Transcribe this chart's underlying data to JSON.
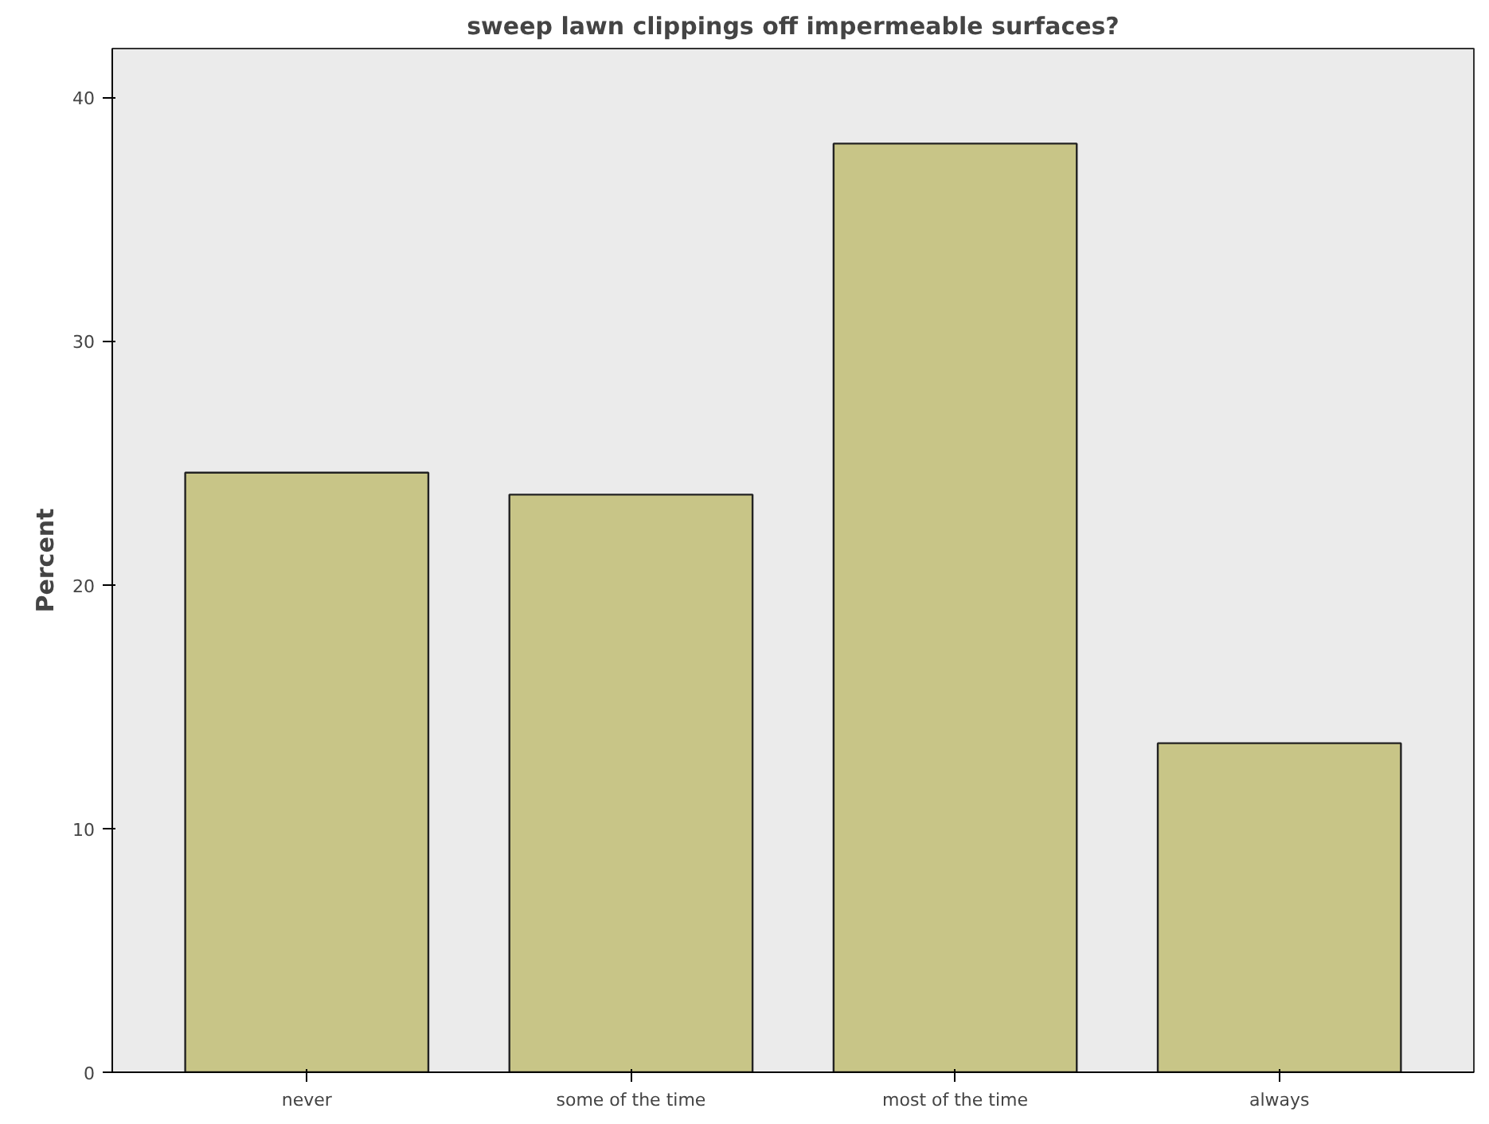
{
  "chart_data": {
    "type": "bar",
    "title": "sweep lawn clippings off impermeable surfaces?",
    "ylabel": "Percent",
    "categories": [
      "never",
      "some of the time",
      "most of the time",
      "always"
    ],
    "values": [
      24.6,
      23.7,
      38.1,
      13.5
    ],
    "color": "#c8c587",
    "ylim": [
      0,
      42
    ],
    "yticks": [
      0,
      10,
      20,
      30,
      40
    ],
    "grid": false
  }
}
